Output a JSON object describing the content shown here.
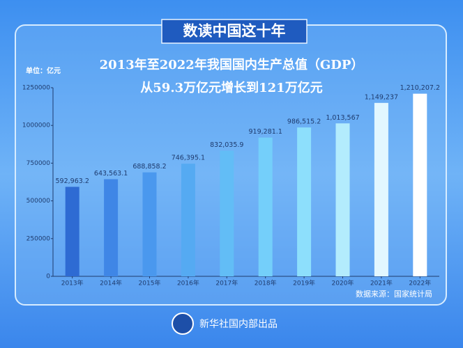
{
  "chart_data": {
    "type": "bar",
    "banner": "数读中国这十年",
    "title": "2013年至2022年我国国内生产总值（GDP）",
    "subtitle": "从59.3万亿元增长到121万亿元",
    "unit_label": "单位：亿元",
    "source": "数据来源：国家统计局",
    "footer": "新华社国内部出品",
    "categories": [
      "2013年",
      "2014年",
      "2015年",
      "2016年",
      "2017年",
      "2018年",
      "2019年",
      "2020年",
      "2021年",
      "2022年"
    ],
    "values": [
      592963.2,
      643563.1,
      688858.2,
      746395.1,
      832035.9,
      919281.1,
      986515.2,
      1013567,
      1149237,
      1210207.2
    ],
    "value_labels": [
      "592,963.2",
      "643,563.1",
      "688,858.2",
      "746,395.1",
      "832,035.9",
      "919,281.1",
      "986,515.2",
      "1,013,567",
      "1,149,237",
      "1,210,207.2"
    ],
    "colors": [
      "#2e6bd3",
      "#3f86e6",
      "#4a98ee",
      "#55aaf2",
      "#62bdf6",
      "#74cffa",
      "#8ddffc",
      "#b3ecfd",
      "#e2f7ff",
      "#ffffff"
    ],
    "ylim": [
      0,
      1250000
    ],
    "yticks": [
      0,
      250000,
      500000,
      750000,
      1000000,
      1250000
    ],
    "grid": false
  }
}
